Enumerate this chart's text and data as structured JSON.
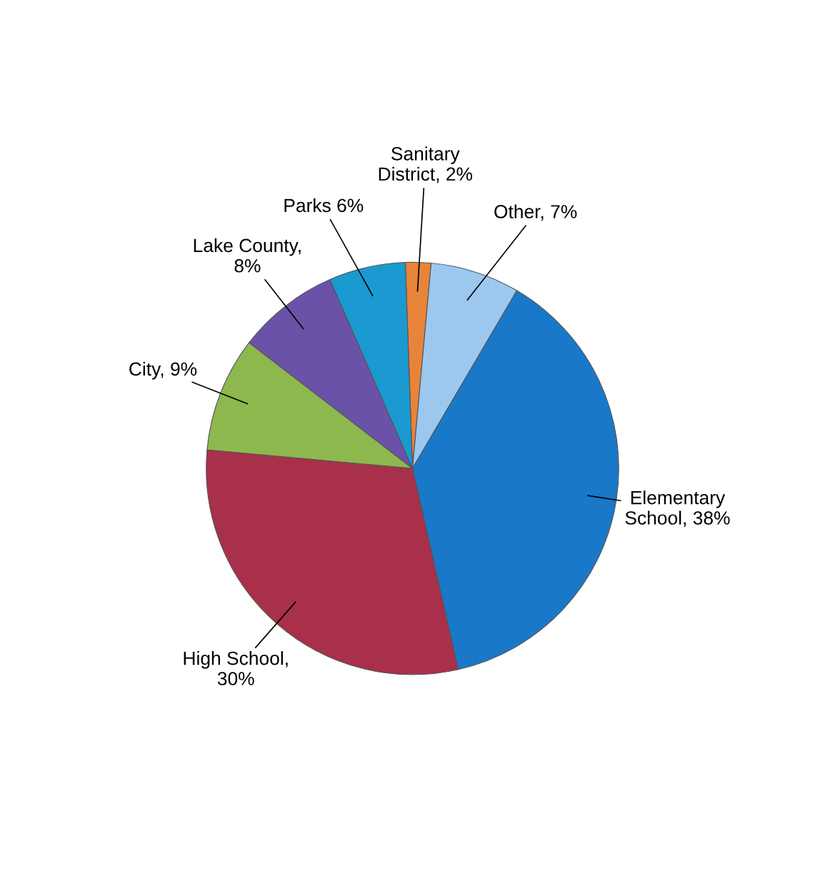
{
  "chart_data": {
    "type": "pie",
    "categories": [
      "Sanitary\nDistrict, 2%",
      "Other, 7%",
      "Elementary\nSchool, 38%",
      "High School,\n30%",
      "City, 9%",
      "Lake County,\n8%",
      "Parks 6%"
    ],
    "values": [
      2,
      7,
      38,
      30,
      9,
      8,
      6
    ],
    "colors": [
      "#e8833a",
      "#9cc8f0",
      "#1a78c8",
      "#a8304a",
      "#8db84e",
      "#6a52a8",
      "#1a9ad0"
    ],
    "legend": false
  }
}
